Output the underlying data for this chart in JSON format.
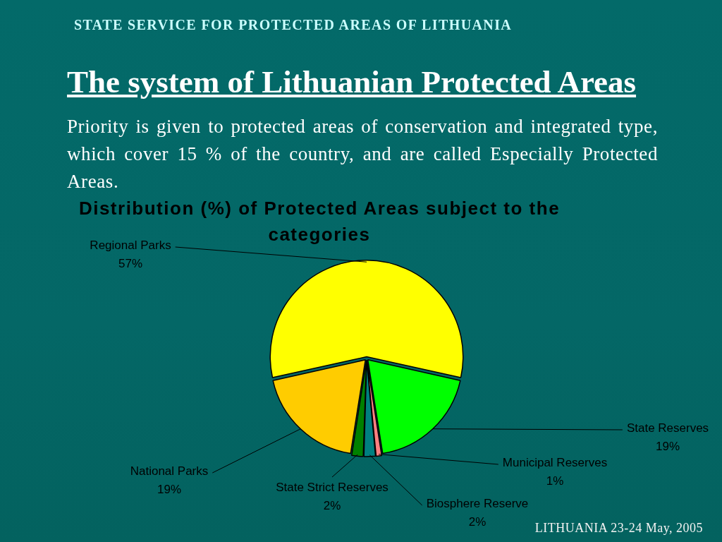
{
  "chart_data": {
    "type": "pie",
    "title": "Distribution (%) of Protected Areas subject to the categories",
    "categories": [
      "Regional Parks",
      "State Reserves",
      "Municipal Reserves",
      "Biosphere Reserve",
      "State Strict Reserves",
      "National Parks"
    ],
    "values": [
      57,
      19,
      1,
      2,
      2,
      19
    ],
    "value_labels": [
      "57%",
      "19%",
      "1%",
      "2%",
      "2%",
      "19%"
    ],
    "colors": [
      "#ffff00",
      "#00ff00",
      "#ff8080",
      "#008080",
      "#008000",
      "#ffcc00"
    ],
    "annotations": [
      "STATE SERVICE FOR PROTECTED AREAS OF LITHUANIA",
      "The system of Lithuanian Protected Areas",
      "Priority is given to protected areas of conservation and integrated type, which cover 15 % of the country, and are called Especially Protected Areas.",
      "LITHUANIA 23-24 May, 2005"
    ]
  }
}
